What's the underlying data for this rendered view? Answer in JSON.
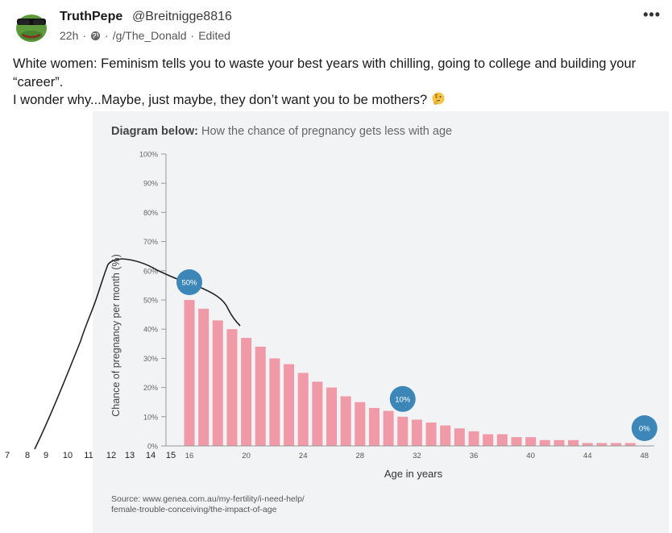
{
  "post": {
    "author_name": "TruthPepe",
    "author_handle": "@Breitnigge8816",
    "time": "22h",
    "dot1": "·",
    "dot2": "·",
    "community": "/g/The_Donald",
    "dot3": "·",
    "edited": "Edited",
    "more": "•••",
    "line1": "White women: Feminism tells you to waste your best years with chilling, going to college and building your “career”.",
    "line2": "I wonder why...Maybe, just maybe, they don’t want you to be mothers?"
  },
  "icons": {
    "avatar": "pepe-frog-avatar",
    "globe": "globe-icon",
    "more": "more-options-icon",
    "emoji": "thinking-face-emoji"
  },
  "colors": {
    "bar": "#f09aa8",
    "bubble": "#3d87b8",
    "panel": "#f1f3f5"
  },
  "chart_data": {
    "type": "bar",
    "title_bold": "Diagram below:",
    "title": "How the chance of pregnancy gets less with age",
    "xlabel": "Age in years",
    "ylabel": "Chance of pregnancy per month (%)",
    "ylim": [
      0,
      100
    ],
    "yticks": [
      "0%",
      "10%",
      "20%",
      "30%",
      "40%",
      "50%",
      "60%",
      "70%",
      "80%",
      "90%",
      "100%"
    ],
    "x_ticks": [
      "16",
      "20",
      "24",
      "28",
      "32",
      "36",
      "40",
      "44",
      "48"
    ],
    "categories": [
      16,
      17,
      18,
      19,
      20,
      21,
      22,
      23,
      24,
      25,
      26,
      27,
      28,
      29,
      30,
      31,
      32,
      33,
      34,
      35,
      36,
      37,
      38,
      39,
      40,
      41,
      42,
      43,
      44,
      45,
      46,
      47,
      48
    ],
    "values": [
      50,
      47,
      43,
      40,
      37,
      34,
      30,
      28,
      25,
      22,
      20,
      17,
      15,
      13,
      12,
      10,
      9,
      8,
      7,
      6,
      5,
      4,
      4,
      3,
      3,
      2,
      2,
      2,
      1,
      1,
      1,
      1,
      0
    ],
    "annotations": [
      {
        "age": 16,
        "value": 50,
        "label": "50%"
      },
      {
        "age": 31,
        "value": 10,
        "label": "10%"
      },
      {
        "age": 48,
        "value": 0,
        "label": "0%"
      }
    ],
    "source_line1": "Source: www.genea.com.au/my-fertility/i-need-help/",
    "source_line2": "female-trouble-conceiving/the-impact-of-age",
    "handdrawn_x_labels": [
      "7",
      "8",
      "9",
      "10",
      "11",
      "12",
      "13",
      "14",
      "15"
    ]
  }
}
